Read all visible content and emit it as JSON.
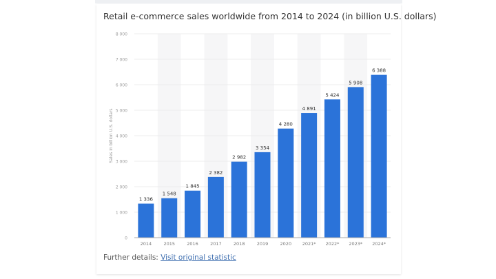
{
  "chart_data": {
    "type": "bar",
    "title": "Retail e-commerce sales worldwide from 2014 to 2024 (in billion U.S. dollars)",
    "xlabel": "",
    "ylabel": "Sales in billion U.S. dollars",
    "categories": [
      "2014",
      "2015",
      "2016",
      "2017",
      "2018",
      "2019",
      "2020",
      "2021*",
      "2022*",
      "2023*",
      "2024*"
    ],
    "values": [
      1336,
      1548,
      1845,
      2382,
      2982,
      3354,
      4280,
      4891,
      5424,
      5908,
      6388
    ],
    "value_labels": [
      "1 336",
      "1 548",
      "1 845",
      "2 382",
      "2 982",
      "3 354",
      "4 280",
      "4 891",
      "5 424",
      "5 908",
      "6 388"
    ],
    "ylim": [
      0,
      8000
    ],
    "yticks": [
      0,
      1000,
      2000,
      3000,
      4000,
      5000,
      6000,
      7000,
      8000
    ],
    "ytick_labels": [
      "0",
      "1 000",
      "2 000",
      "3 000",
      "4 000",
      "5 000",
      "6 000",
      "7 000",
      "8 000"
    ],
    "grid": true,
    "bar_color": "#2b73d9"
  },
  "footer": {
    "prefix": "Further details:",
    "link": "Visit original statistic"
  }
}
